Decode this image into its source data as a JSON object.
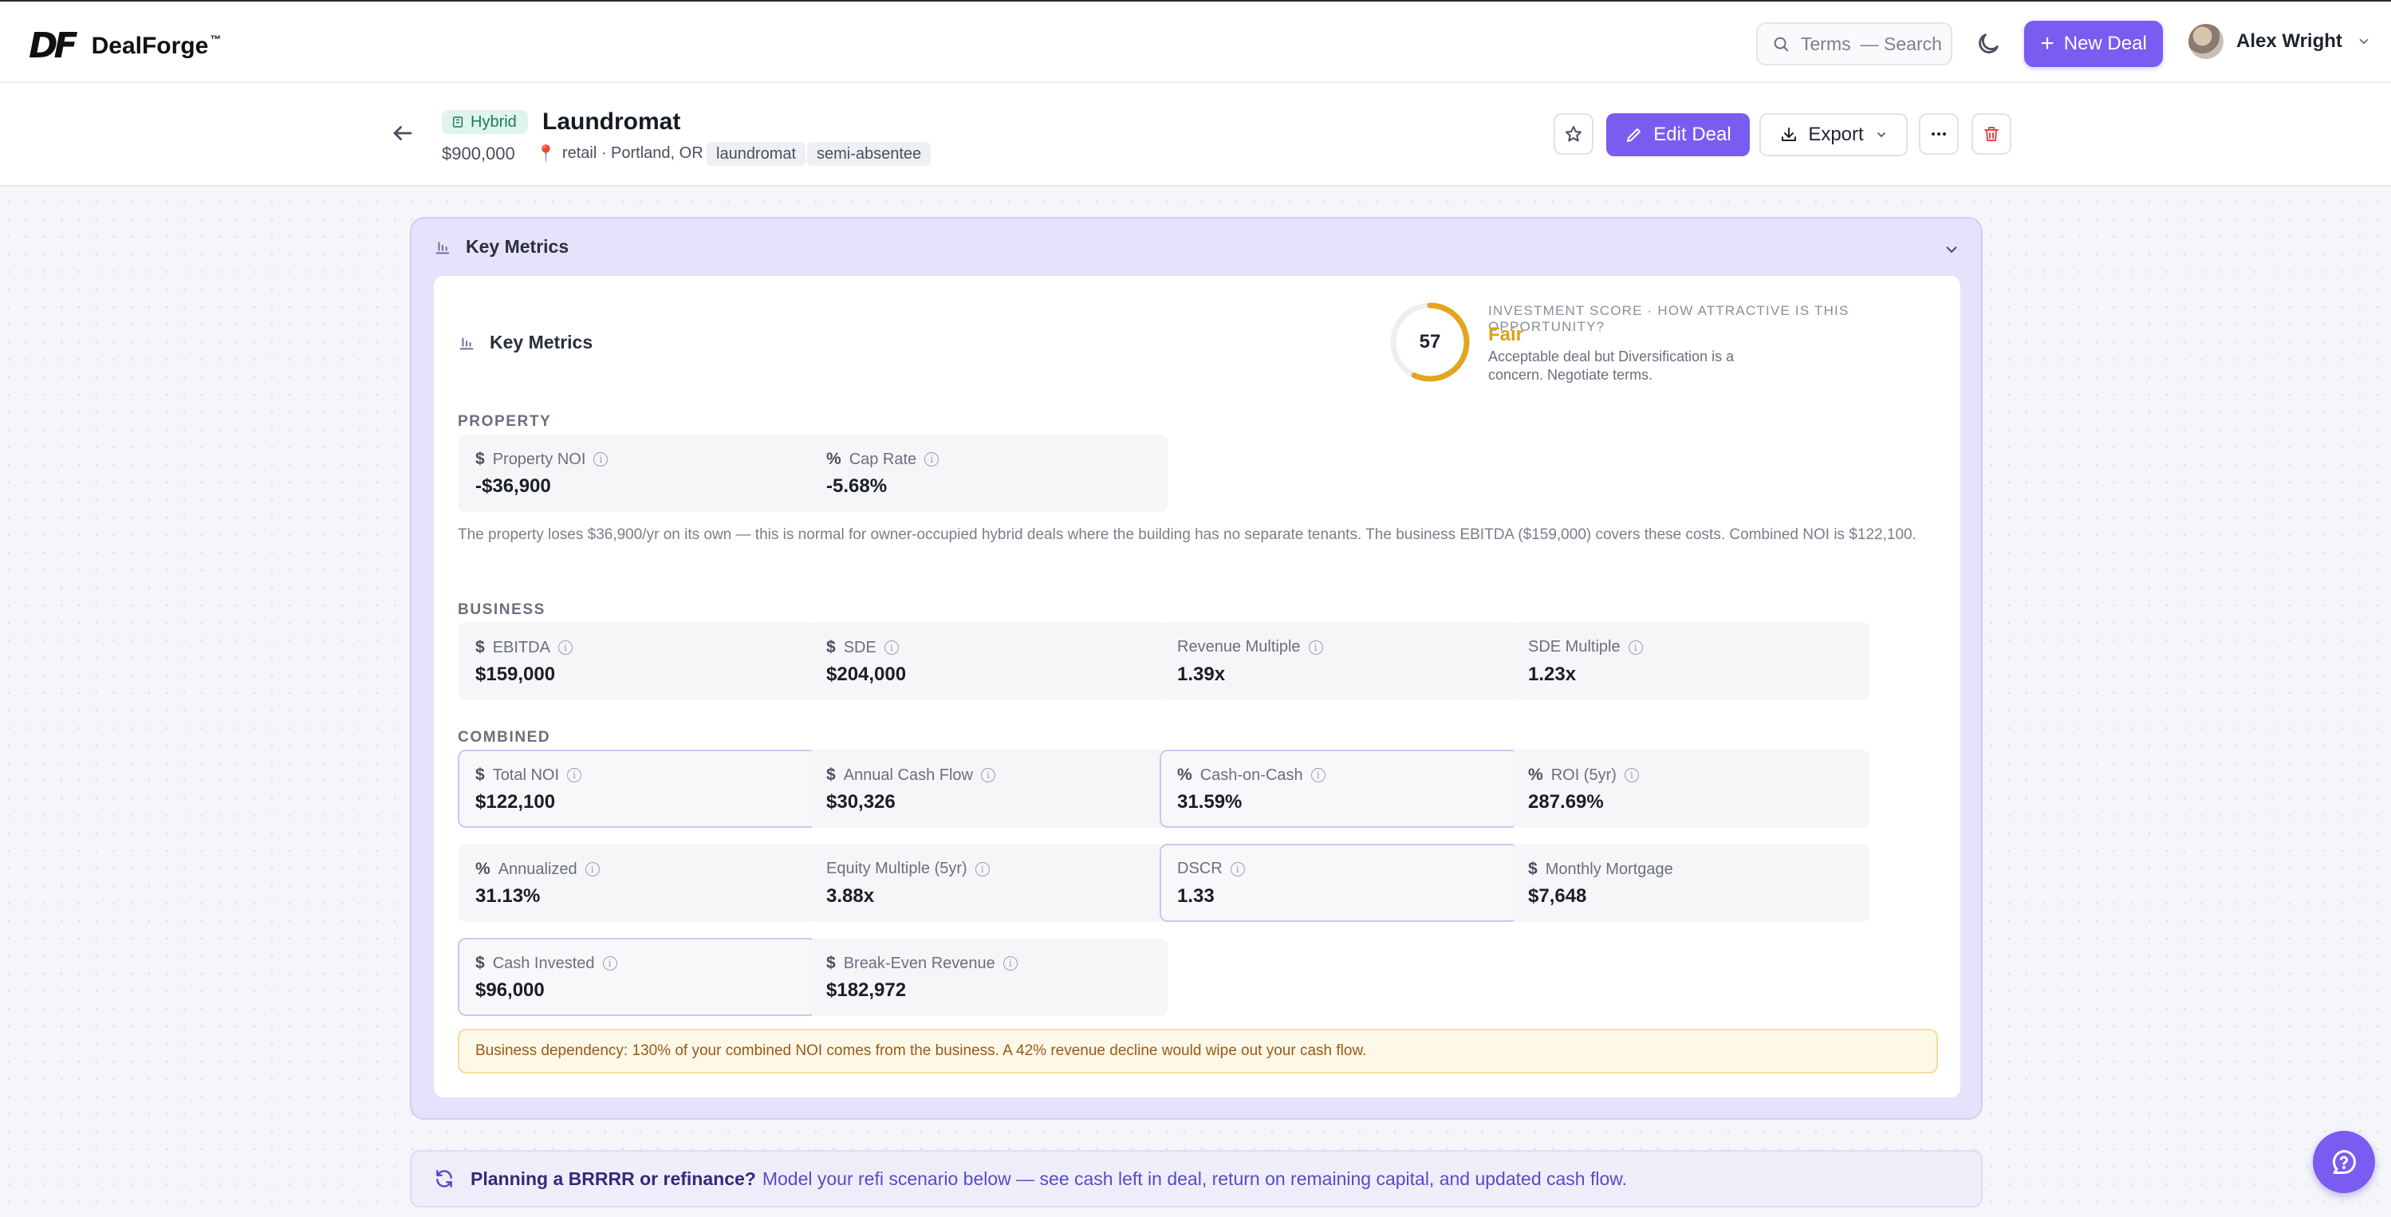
{
  "app": {
    "logo_mark": "DF",
    "name": "DealForge",
    "trademark": "™"
  },
  "topbar": {
    "search_label": "Terms",
    "search_hint": "— Search",
    "new_deal_label": "New Deal",
    "user_name": "Alex Wright"
  },
  "deal": {
    "type_badge": "Hybrid",
    "title": "Laundromat",
    "price": "$900,000",
    "location": "retail · Portland, OR",
    "tags": [
      "laundromat",
      "semi-absentee"
    ],
    "actions": {
      "edit_label": "Edit Deal",
      "export_label": "Export"
    }
  },
  "key_metrics": {
    "panel_title": "Key Metrics",
    "card_title": "Key Metrics",
    "score": {
      "value": "57",
      "value_fraction": 0.57,
      "ring_color": "#e3a51c",
      "label": "INVESTMENT SCORE · HOW ATTRACTIVE IS THIS OPPORTUNITY?",
      "rating": "Fair",
      "description": "Acceptable deal but Diversification is a concern. Negotiate terms."
    },
    "sections": {
      "property": "PROPERTY",
      "business": "BUSINESS",
      "combined": "COMBINED"
    },
    "property": [
      {
        "symbol": "$",
        "label": "Property NOI",
        "value": "-$36,900"
      },
      {
        "symbol": "%",
        "label": "Cap Rate",
        "value": "-5.68%"
      }
    ],
    "property_note": "The property loses $36,900/yr on its own — this is normal for owner-occupied hybrid deals where the building has no separate tenants. The business EBITDA ($159,000) covers these costs. Combined NOI is $122,100.",
    "business": [
      {
        "symbol": "$",
        "label": "EBITDA",
        "value": "$159,000"
      },
      {
        "symbol": "$",
        "label": "SDE",
        "value": "$204,000"
      },
      {
        "symbol": "",
        "label": "Revenue Multiple",
        "value": "1.39x"
      },
      {
        "symbol": "",
        "label": "SDE Multiple",
        "value": "1.23x"
      }
    ],
    "combined": [
      {
        "symbol": "$",
        "label": "Total NOI",
        "value": "$122,100"
      },
      {
        "symbol": "$",
        "label": "Annual Cash Flow",
        "value": "$30,326"
      },
      {
        "symbol": "%",
        "label": "Cash-on-Cash",
        "value": "31.59%"
      },
      {
        "symbol": "%",
        "label": "ROI (5yr)",
        "value": "287.69%"
      },
      {
        "symbol": "%",
        "label": "Annualized",
        "value": "31.13%"
      },
      {
        "symbol": "",
        "label": "Equity Multiple (5yr)",
        "value": "3.88x"
      },
      {
        "symbol": "",
        "label": "DSCR",
        "value": "1.33"
      },
      {
        "symbol": "$",
        "label": "Monthly Mortgage",
        "value": "$7,648"
      },
      {
        "symbol": "$",
        "label": "Cash Invested",
        "value": "$96,000"
      },
      {
        "symbol": "$",
        "label": "Break-Even Revenue",
        "value": "$182,972"
      }
    ],
    "warning": "Business dependency: 130% of your combined NOI comes from the business. A 42% revenue decline would wipe out your cash flow."
  },
  "refi_banner": {
    "strong": "Planning a BRRRR or refinance?",
    "text": "Model your refi scenario below — see cash left in deal, return on remaining capital, and updated cash flow."
  },
  "colors": {
    "accent": "#7a5cf0",
    "score_fair": "#d9a11a",
    "warning_text": "#9a5a14",
    "hybrid_badge": "#1e7a58"
  }
}
